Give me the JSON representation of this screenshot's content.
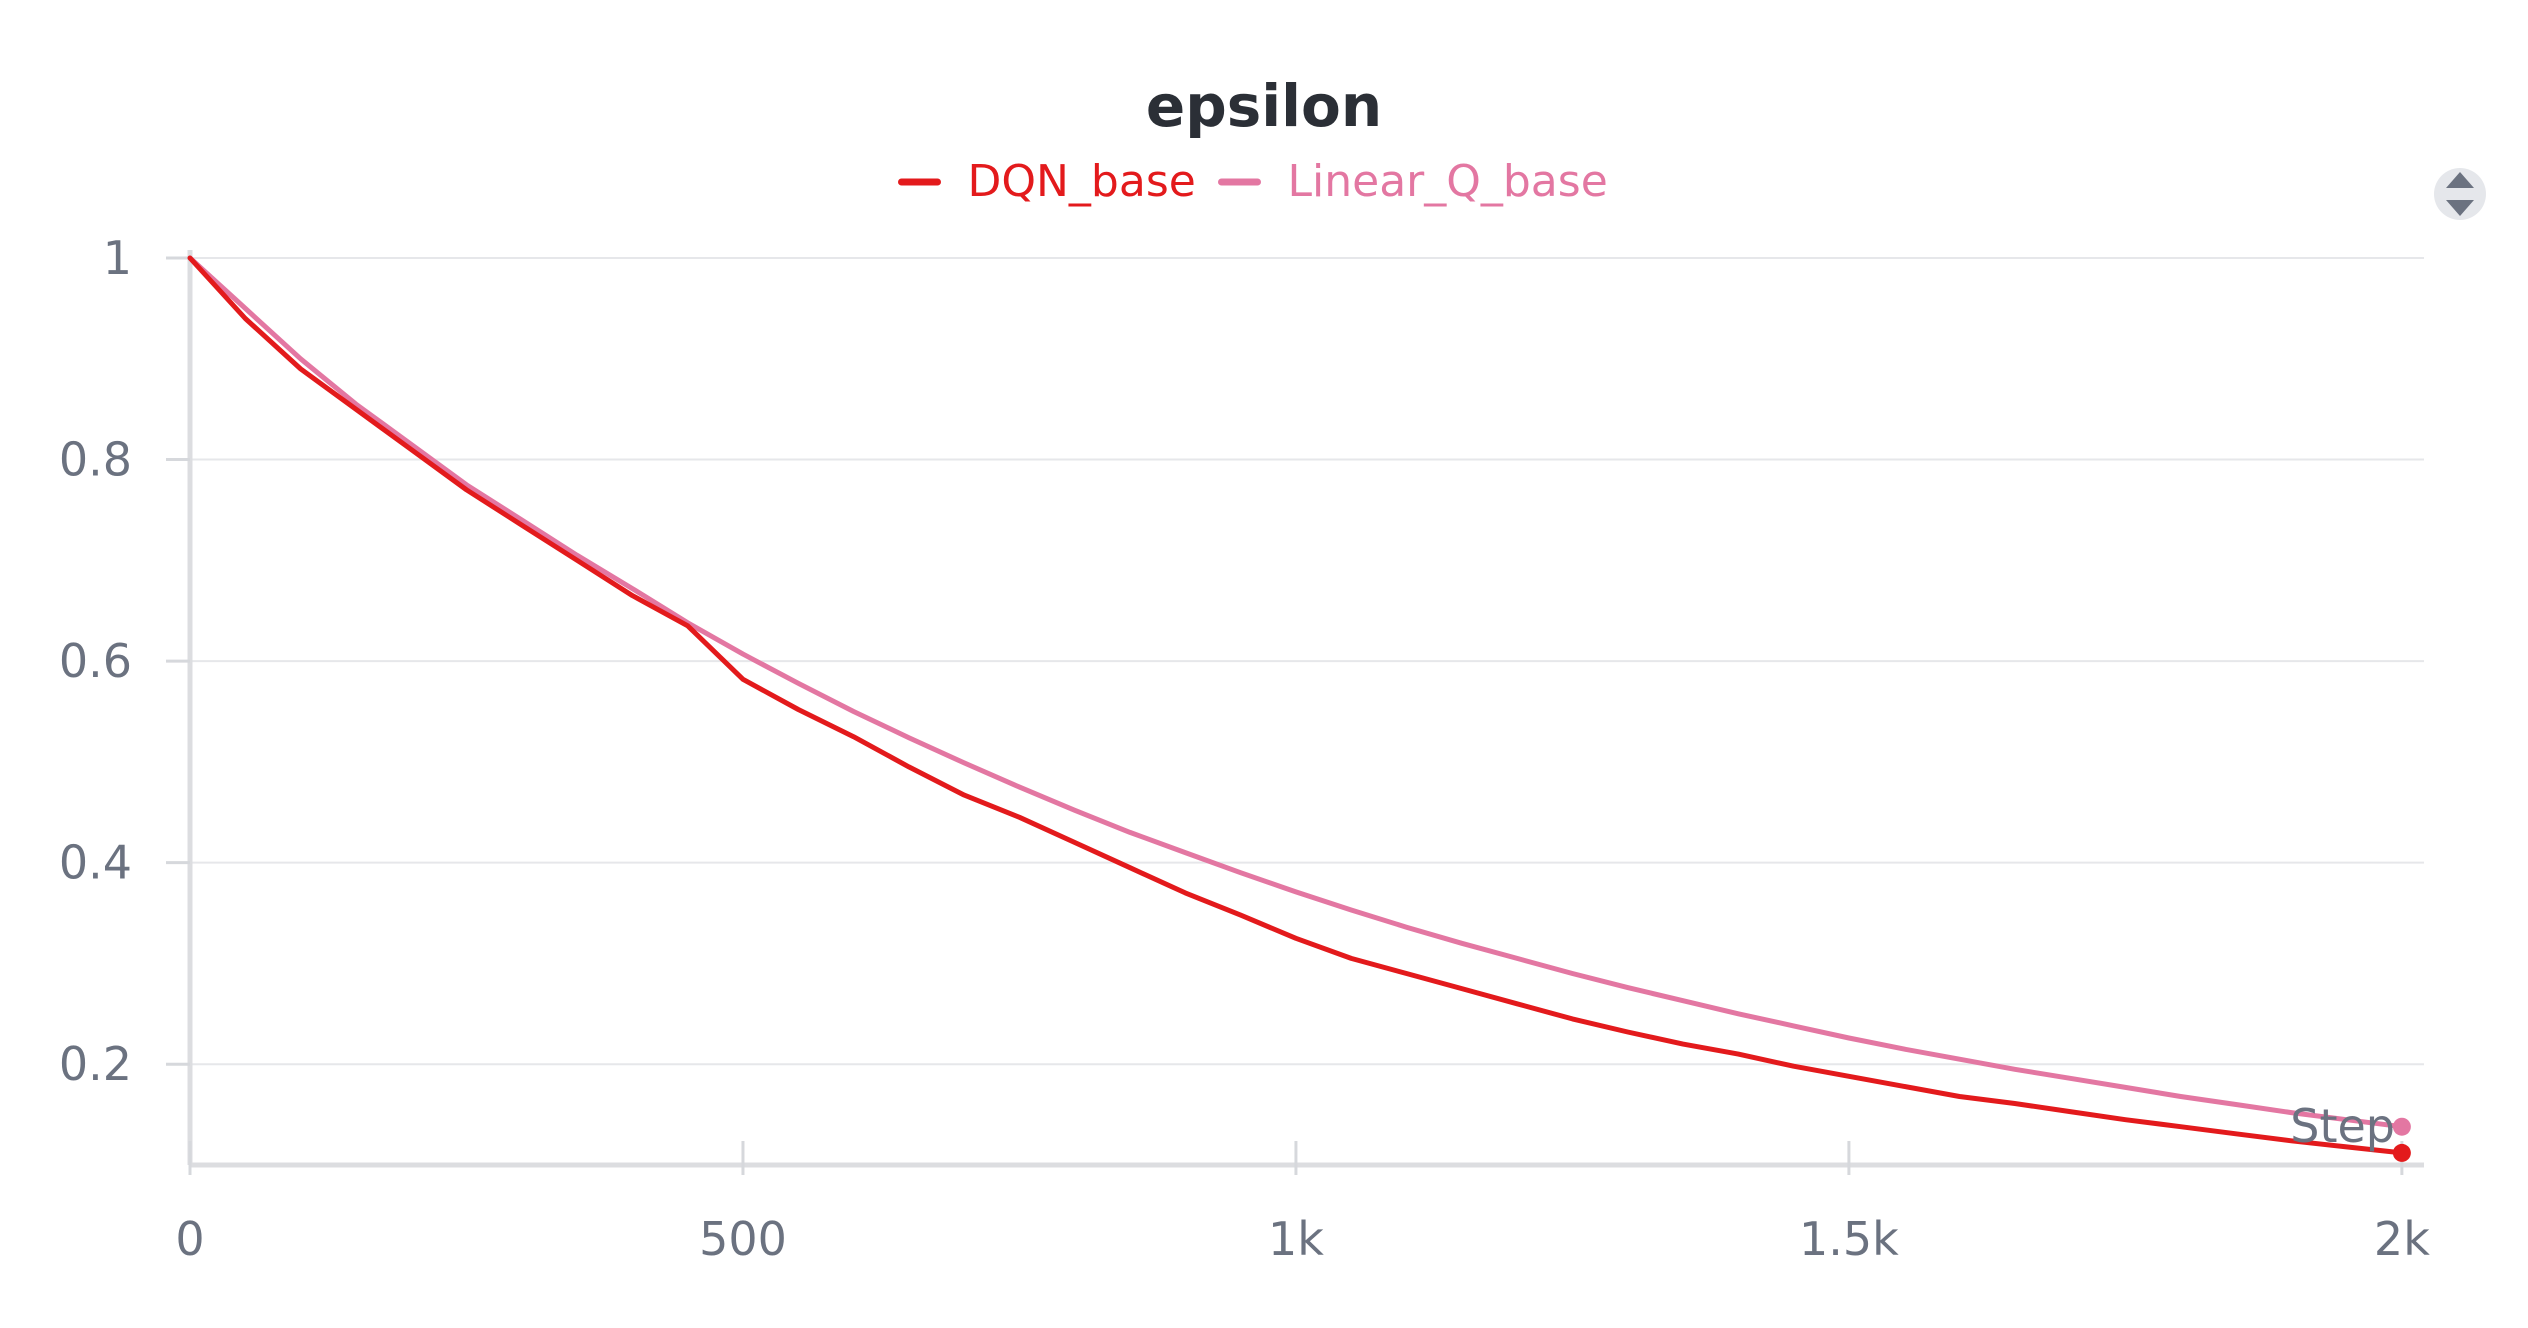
{
  "chart_data": {
    "type": "line",
    "title": "epsilon",
    "xlabel": "Step",
    "ylabel": "",
    "xlim": [
      0,
      2020
    ],
    "ylim": [
      0.1,
      1.0
    ],
    "x_ticks": [
      0,
      500,
      1000,
      1500,
      2000
    ],
    "x_tick_labels": [
      "0",
      "500",
      "1k",
      "1.5k",
      "2k"
    ],
    "y_ticks": [
      0.2,
      0.4,
      0.6,
      0.8,
      1.0
    ],
    "y_tick_labels": [
      "0.2",
      "0.4",
      "0.6",
      "0.8",
      "1"
    ],
    "grid": true,
    "legend_placement": "top-center",
    "series": [
      {
        "name": "DQN_base",
        "color": "#e31a1c",
        "x": [
          0,
          50,
          100,
          150,
          200,
          250,
          300,
          350,
          400,
          450,
          500,
          550,
          600,
          650,
          700,
          750,
          800,
          850,
          900,
          950,
          1000,
          1050,
          1100,
          1150,
          1200,
          1250,
          1300,
          1350,
          1400,
          1450,
          1500,
          1550,
          1600,
          1650,
          1700,
          1750,
          1800,
          1850,
          1900,
          1950,
          2000
        ],
        "y": [
          1.0,
          0.94,
          0.89,
          0.85,
          0.81,
          0.77,
          0.735,
          0.7,
          0.665,
          0.635,
          0.582,
          0.552,
          0.525,
          0.495,
          0.467,
          0.445,
          0.42,
          0.395,
          0.37,
          0.348,
          0.325,
          0.305,
          0.29,
          0.275,
          0.26,
          0.245,
          0.232,
          0.22,
          0.21,
          0.198,
          0.188,
          0.178,
          0.168,
          0.161,
          0.153,
          0.145,
          0.138,
          0.131,
          0.124,
          0.118,
          0.112
        ]
      },
      {
        "name": "Linear_Q_base",
        "color": "#e377a2",
        "x": [
          0,
          50,
          100,
          150,
          200,
          250,
          300,
          350,
          400,
          450,
          500,
          550,
          600,
          650,
          700,
          750,
          800,
          850,
          900,
          950,
          1000,
          1050,
          1100,
          1150,
          1200,
          1250,
          1300,
          1350,
          1400,
          1450,
          1500,
          1550,
          1600,
          1650,
          1700,
          1750,
          1800,
          1850,
          1900,
          1950,
          2000
        ],
        "y": [
          1.0,
          0.95,
          0.9,
          0.855,
          0.815,
          0.775,
          0.74,
          0.705,
          0.672,
          0.638,
          0.607,
          0.578,
          0.55,
          0.524,
          0.499,
          0.475,
          0.452,
          0.43,
          0.41,
          0.39,
          0.371,
          0.353,
          0.336,
          0.32,
          0.305,
          0.29,
          0.276,
          0.263,
          0.25,
          0.238,
          0.226,
          0.215,
          0.205,
          0.195,
          0.186,
          0.177,
          0.168,
          0.16,
          0.152,
          0.145,
          0.138
        ]
      }
    ]
  },
  "icons": {
    "menu": "grip-handle-icon"
  }
}
